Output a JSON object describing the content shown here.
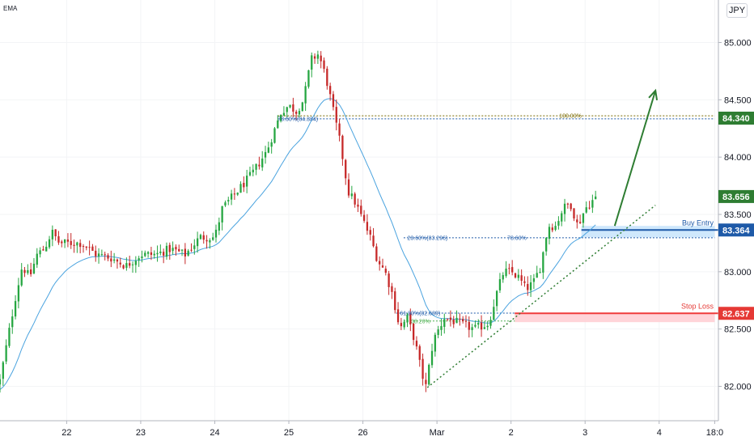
{
  "indicator": "EMA",
  "currency": "JPY",
  "colors": {
    "up": "#26a641",
    "down": "#c62828",
    "ema": "#4aa3df",
    "green_line": "#2e7d32",
    "blue": "#1e5aa8",
    "red": "#ef3b3b"
  },
  "price_levels": {
    "target": {
      "value": "84.340"
    },
    "current": {
      "value": "83.656"
    },
    "buy_entry": {
      "label": "Buy Entry",
      "value": "83.364"
    },
    "stop_loss": {
      "label": "Stop Loss",
      "value": "82.637"
    }
  },
  "fib_labels": {
    "top_left": "78.60%(84.334)",
    "top_right": "100.00%",
    "mid_left": "23.60%(83.296)",
    "mid_right": "78.60%",
    "low_left": "61.80%(82.639)",
    "low_right": "38.20%"
  },
  "chart_data": {
    "type": "candlestick",
    "y_ticks": [
      "85.000",
      "84.500",
      "84.000",
      "83.500",
      "83.000",
      "82.500",
      "82.000"
    ],
    "y_tick_values": [
      85.0,
      84.5,
      84.0,
      83.5,
      83.0,
      82.5,
      82.0
    ],
    "ylim": [
      81.7,
      85.3
    ],
    "x_ticks": [
      "22",
      "23",
      "24",
      "25",
      "26",
      "Mar",
      "2",
      "3",
      "4",
      "18:0"
    ],
    "x_tick_times": [
      2,
      3,
      4,
      5,
      6,
      7,
      8,
      9,
      10,
      10.75
    ],
    "xlim": [
      1.1,
      10.8
    ],
    "anchors": [
      [
        1.1,
        82.05
      ],
      [
        1.2,
        82.4
      ],
      [
        1.3,
        82.75
      ],
      [
        1.4,
        83.05
      ],
      [
        1.5,
        82.95
      ],
      [
        1.6,
        83.15
      ],
      [
        1.7,
        83.2
      ],
      [
        1.8,
        83.35
      ],
      [
        1.9,
        83.25
      ],
      [
        2.0,
        83.25
      ],
      [
        2.2,
        83.25
      ],
      [
        2.4,
        83.15
      ],
      [
        2.6,
        83.12
      ],
      [
        2.8,
        83.05
      ],
      [
        3.0,
        83.15
      ],
      [
        3.2,
        83.15
      ],
      [
        3.4,
        83.2
      ],
      [
        3.6,
        83.15
      ],
      [
        3.8,
        83.3
      ],
      [
        4.0,
        83.3
      ],
      [
        4.1,
        83.55
      ],
      [
        4.3,
        83.7
      ],
      [
        4.5,
        83.85
      ],
      [
        4.7,
        84.05
      ],
      [
        4.9,
        84.4
      ],
      [
        5.0,
        84.45
      ],
      [
        5.1,
        84.4
      ],
      [
        5.2,
        84.5
      ],
      [
        5.3,
        84.85
      ],
      [
        5.4,
        84.9
      ],
      [
        5.5,
        84.7
      ],
      [
        5.6,
        84.4
      ],
      [
        5.7,
        84.1
      ],
      [
        5.8,
        83.7
      ],
      [
        5.9,
        83.6
      ],
      [
        6.0,
        83.45
      ],
      [
        6.1,
        83.3
      ],
      [
        6.2,
        83.1
      ],
      [
        6.3,
        83.0
      ],
      [
        6.4,
        82.8
      ],
      [
        6.5,
        82.5
      ],
      [
        6.6,
        82.6
      ],
      [
        6.7,
        82.4
      ],
      [
        6.8,
        82.1
      ],
      [
        6.85,
        82.0
      ],
      [
        6.95,
        82.4
      ],
      [
        7.1,
        82.6
      ],
      [
        7.3,
        82.55
      ],
      [
        7.5,
        82.5
      ],
      [
        7.7,
        82.55
      ],
      [
        7.8,
        82.8
      ],
      [
        7.9,
        83.0
      ],
      [
        8.0,
        83.0
      ],
      [
        8.1,
        82.95
      ],
      [
        8.2,
        82.85
      ],
      [
        8.3,
        82.9
      ],
      [
        8.4,
        83.05
      ],
      [
        8.5,
        83.4
      ],
      [
        8.6,
        83.4
      ],
      [
        8.7,
        83.55
      ],
      [
        8.8,
        83.6
      ],
      [
        8.9,
        83.4
      ],
      [
        9.0,
        83.55
      ],
      [
        9.1,
        83.62
      ],
      [
        9.15,
        83.656
      ]
    ],
    "fib_lines": [
      {
        "value": 84.334,
        "from": 4.85,
        "to": 10.75,
        "color": "#1e5aa8"
      },
      {
        "value": 84.36,
        "from": 4.85,
        "to": 10.75,
        "color": "#7a6a00"
      },
      {
        "value": 83.296,
        "from": 6.55,
        "to": 10.75,
        "color": "#1e5aa8"
      },
      {
        "value": 82.639,
        "from": 6.45,
        "to": 8.05,
        "color": "#1e5aa8"
      },
      {
        "value": 82.57,
        "from": 6.55,
        "to": 8.05,
        "color": "#4caf50"
      }
    ],
    "trendline": [
      [
        6.87,
        81.99
      ],
      [
        9.95,
        83.58
      ]
    ],
    "arrow": [
      [
        9.4,
        83.4
      ],
      [
        9.95,
        84.58
      ]
    ],
    "buy_zone": [
      8.95,
      10.75,
      83.3,
      83.4
    ],
    "stop_zone": [
      8.05,
      10.75,
      82.56,
      82.64
    ]
  }
}
